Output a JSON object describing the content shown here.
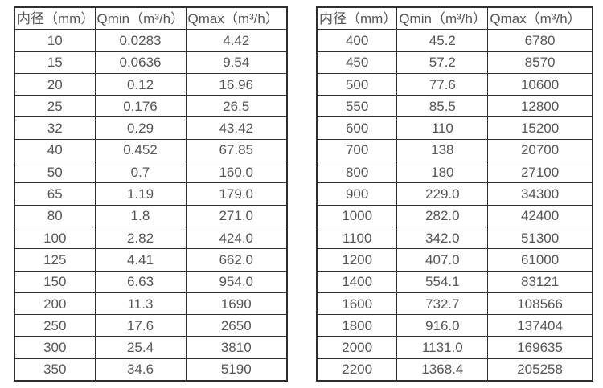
{
  "colors": {
    "background": "#ffffff",
    "border": "#2f2f2f",
    "text": "#555555"
  },
  "tables": [
    {
      "title": "small-diameter-spec-table",
      "headers": [
        "内径（mm）",
        "Qmin（m³/h）",
        "Qmax（m³/h）"
      ],
      "rows": [
        [
          "10",
          "0.0283",
          "4.42"
        ],
        [
          "15",
          "0.0636",
          "9.54"
        ],
        [
          "20",
          "0.12",
          "16.96"
        ],
        [
          "25",
          "0.176",
          "26.5"
        ],
        [
          "32",
          "0.29",
          "43.42"
        ],
        [
          "40",
          "0.452",
          "67.85"
        ],
        [
          "50",
          "0.7",
          "160.0"
        ],
        [
          "65",
          "1.19",
          "179.0"
        ],
        [
          "80",
          "1.8",
          "271.0"
        ],
        [
          "100",
          "2.82",
          "424.0"
        ],
        [
          "125",
          "4.41",
          "662.0"
        ],
        [
          "150",
          "6.63",
          "954.0"
        ],
        [
          "200",
          "11.3",
          "1690"
        ],
        [
          "250",
          "17.6",
          "2650"
        ],
        [
          "300",
          "25.4",
          "3810"
        ],
        [
          "350",
          "34.6",
          "5190"
        ]
      ]
    },
    {
      "title": "large-diameter-spec-table",
      "headers": [
        "内径（mm）",
        "Qmin（m³/h）",
        "Qmax（m³/h）"
      ],
      "rows": [
        [
          "400",
          "45.2",
          "6780"
        ],
        [
          "450",
          "57.2",
          "8570"
        ],
        [
          "500",
          "77.6",
          "10600"
        ],
        [
          "550",
          "85.5",
          "12800"
        ],
        [
          "600",
          "110",
          "15200"
        ],
        [
          "700",
          "138",
          "20700"
        ],
        [
          "800",
          "180",
          "27100"
        ],
        [
          "900",
          "229.0",
          "34300"
        ],
        [
          "1000",
          "282.0",
          "42400"
        ],
        [
          "1100",
          "342.0",
          "51300"
        ],
        [
          "1200",
          "407.0",
          "61000"
        ],
        [
          "1400",
          "554.1",
          "83121"
        ],
        [
          "1600",
          "732.7",
          "108566"
        ],
        [
          "1800",
          "916.0",
          "137404"
        ],
        [
          "2000",
          "1131.0",
          "169635"
        ],
        [
          "2200",
          "1368.4",
          "205258"
        ]
      ]
    }
  ]
}
